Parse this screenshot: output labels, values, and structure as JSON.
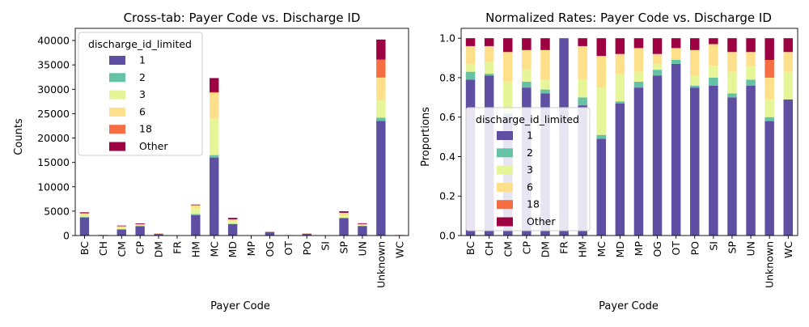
{
  "colors": {
    "1": "#5e4fa2",
    "2": "#66c2a5",
    "3": "#e6f598",
    "6": "#fee08b",
    "18": "#f46d43",
    "Other": "#9e0142"
  },
  "chart_data": [
    {
      "type": "bar",
      "stacked": true,
      "title": "Cross-tab: Payer Code vs. Discharge ID",
      "xlabel": "Payer Code",
      "ylabel": "Counts",
      "ylim": [
        0,
        42500
      ],
      "yticks": [
        0,
        5000,
        10000,
        15000,
        20000,
        25000,
        30000,
        35000,
        40000
      ],
      "legend": {
        "title": "discharge_id_limited",
        "placement": "upper-left"
      },
      "categories": [
        "BC",
        "CH",
        "CM",
        "CP",
        "DM",
        "FR",
        "HM",
        "MC",
        "MD",
        "MP",
        "OG",
        "OT",
        "PO",
        "SI",
        "SP",
        "UN",
        "Unknown",
        "WC"
      ],
      "series": [
        {
          "name": "1",
          "values": [
            3700,
            110,
            1250,
            1900,
            320,
            1,
            4200,
            16000,
            2350,
            60,
            700,
            85,
            350,
            45,
            3550,
            1950,
            23500,
            100
          ]
        },
        {
          "name": "2",
          "values": [
            150,
            5,
            10,
            80,
            5,
            0,
            200,
            500,
            50,
            3,
            30,
            2,
            5,
            2,
            100,
            60,
            700,
            3
          ]
        },
        {
          "name": "3",
          "values": [
            200,
            10,
            400,
            100,
            30,
            0,
            1100,
            7500,
            550,
            5,
            25,
            1,
            15,
            3,
            500,
            170,
            3500,
            20
          ]
        },
        {
          "name": "6",
          "values": [
            500,
            10,
            250,
            250,
            70,
            0,
            700,
            5300,
            370,
            8,
            25,
            4,
            55,
            6,
            500,
            170,
            4700,
            15
          ]
        },
        {
          "name": "18",
          "values": [
            15,
            1,
            5,
            5,
            1,
            0,
            20,
            100,
            5,
            0,
            5,
            0,
            1,
            0,
            20,
            5,
            3700,
            0
          ]
        },
        {
          "name": "Other",
          "values": [
            200,
            6,
            130,
            150,
            30,
            0,
            130,
            2900,
            310,
            3,
            35,
            5,
            30,
            2,
            310,
            165,
            4100,
            10
          ]
        }
      ]
    },
    {
      "type": "bar",
      "stacked": true,
      "title": "Normalized Rates: Payer Code vs. Discharge ID",
      "xlabel": "Payer Code",
      "ylabel": "Proportions",
      "ylim": [
        0,
        1.05
      ],
      "yticks": [
        "0.0",
        "0.2",
        "0.4",
        "0.6",
        "0.8",
        "1.0"
      ],
      "legend": {
        "title": "discharge_id_limited",
        "placement": "center-left"
      },
      "categories": [
        "BC",
        "CH",
        "CM",
        "CP",
        "DM",
        "FR",
        "HM",
        "MC",
        "MD",
        "MP",
        "OG",
        "OT",
        "PO",
        "SI",
        "SP",
        "UN",
        "Unknown",
        "WC"
      ],
      "series": [
        {
          "name": "1",
          "values": [
            0.79,
            0.81,
            0.61,
            0.75,
            0.72,
            1.0,
            0.66,
            0.49,
            0.67,
            0.75,
            0.81,
            0.87,
            0.75,
            0.76,
            0.7,
            0.76,
            0.58,
            0.69
          ]
        },
        {
          "name": "2",
          "values": [
            0.04,
            0.01,
            0.01,
            0.03,
            0.02,
            0.0,
            0.04,
            0.02,
            0.01,
            0.03,
            0.03,
            0.02,
            0.01,
            0.04,
            0.02,
            0.03,
            0.02,
            0.0
          ]
        },
        {
          "name": "3",
          "values": [
            0.04,
            0.06,
            0.16,
            0.06,
            0.05,
            0.0,
            0.09,
            0.24,
            0.14,
            0.05,
            0.03,
            0.0,
            0.05,
            0.06,
            0.11,
            0.07,
            0.09,
            0.14
          ]
        },
        {
          "name": "6",
          "values": [
            0.09,
            0.08,
            0.15,
            0.1,
            0.15,
            0.0,
            0.17,
            0.16,
            0.1,
            0.12,
            0.05,
            0.06,
            0.13,
            0.11,
            0.1,
            0.07,
            0.11,
            0.1
          ]
        },
        {
          "name": "18",
          "values": [
            0.0,
            0.0,
            0.0,
            0.0,
            0.0,
            0.0,
            0.0,
            0.0,
            0.0,
            0.0,
            0.0,
            0.0,
            0.0,
            0.0,
            0.0,
            0.0,
            0.09,
            0.0
          ]
        },
        {
          "name": "Other",
          "values": [
            0.04,
            0.04,
            0.07,
            0.06,
            0.06,
            0.0,
            0.04,
            0.09,
            0.08,
            0.05,
            0.08,
            0.05,
            0.06,
            0.03,
            0.07,
            0.07,
            0.11,
            0.07
          ]
        }
      ]
    }
  ]
}
